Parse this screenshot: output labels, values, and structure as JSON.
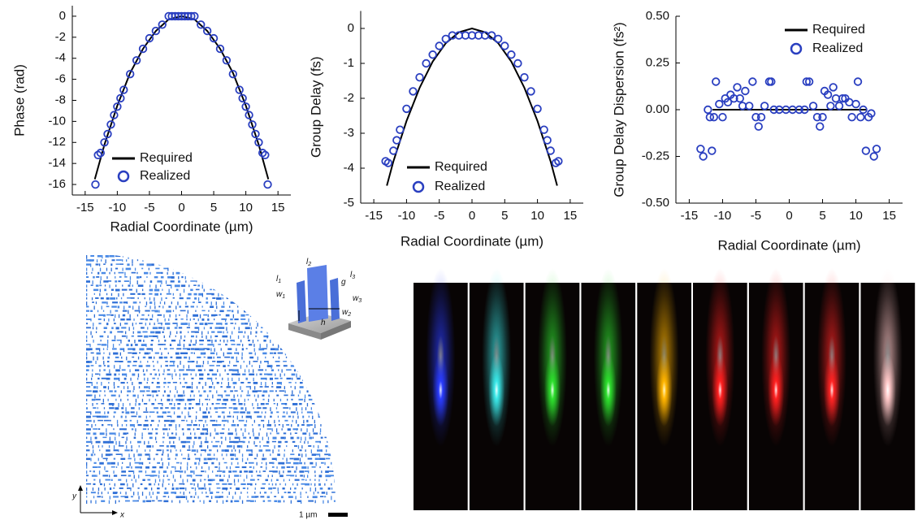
{
  "chart_data": [
    {
      "type": "line",
      "ylabel": "Phase (rad)",
      "xlabel": "Radial Coordinate (µm)",
      "xlim": [
        -17,
        17
      ],
      "xticks": [
        -15,
        -10,
        -5,
        0,
        5,
        10,
        15
      ],
      "ylim": [
        -17,
        1
      ],
      "yticks": [
        0,
        -2,
        -4,
        -6,
        -8,
        -10,
        -12,
        -14,
        -16
      ],
      "series": [
        {
          "name": "Required",
          "style": "line",
          "color": "#000000",
          "x": [
            -13.5,
            -12,
            -10,
            -8,
            -6,
            -4,
            -2,
            0,
            2,
            4,
            6,
            8,
            10,
            12,
            13.5
          ],
          "values": [
            -15.5,
            -12.2,
            -8.5,
            -5.4,
            -3.1,
            -1.4,
            -0.3,
            0,
            -0.3,
            -1.4,
            -3.1,
            -5.4,
            -8.5,
            -12.2,
            -15.5
          ]
        },
        {
          "name": "Realized",
          "style": "scatter",
          "color": "#2a3fc0",
          "x": [
            -13.4,
            -13,
            -12.6,
            -12,
            -11.5,
            -11,
            -10.5,
            -10,
            -9.5,
            -9,
            -8,
            -7,
            -6,
            -5,
            -4,
            -3,
            -2,
            -1.5,
            -1,
            -0.5,
            0,
            0.5,
            1,
            1.5,
            2,
            3,
            4,
            5,
            6,
            7,
            8,
            9,
            9.5,
            10,
            10.5,
            11,
            11.5,
            12,
            12.6,
            13,
            13.4
          ],
          "values": [
            -16,
            -13.2,
            -13,
            -12,
            -11.2,
            -10.3,
            -9.4,
            -8.6,
            -7.8,
            -7,
            -5.5,
            -4.2,
            -3.1,
            -2.1,
            -1.4,
            -0.8,
            0,
            0,
            0,
            0,
            0,
            0,
            0,
            0,
            0,
            -0.8,
            -1.4,
            -2.1,
            -3.1,
            -4.2,
            -5.5,
            -7,
            -7.8,
            -8.6,
            -9.4,
            -10.3,
            -11.2,
            -12,
            -13,
            -13.2,
            -16
          ]
        }
      ]
    },
    {
      "type": "line",
      "ylabel": "Group Delay (fs)",
      "xlabel": "Radial Coordinate (µm)",
      "xlim": [
        -17,
        17
      ],
      "xticks": [
        -15,
        -10,
        -5,
        0,
        5,
        10,
        15
      ],
      "ylim": [
        -5,
        0.5
      ],
      "yticks": [
        0,
        -1,
        -2,
        -3,
        -4,
        -5
      ],
      "series": [
        {
          "name": "Required",
          "style": "line",
          "color": "#000000",
          "x": [
            -13,
            -12,
            -10,
            -8,
            -6,
            -4,
            -2,
            0,
            2,
            4,
            6,
            8,
            10,
            12,
            13
          ],
          "values": [
            -4.5,
            -3.8,
            -2.65,
            -1.7,
            -0.95,
            -0.42,
            -0.11,
            0,
            -0.11,
            -0.42,
            -0.95,
            -1.7,
            -2.65,
            -3.8,
            -4.5
          ]
        },
        {
          "name": "Realized",
          "style": "scatter",
          "color": "#2a3fc0",
          "x": [
            -13.2,
            -12.8,
            -12,
            -11.5,
            -11,
            -10,
            -9,
            -8,
            -7,
            -6,
            -5,
            -4,
            -3,
            -2,
            -1,
            0,
            1,
            2,
            3,
            4,
            5,
            6,
            7,
            8,
            9,
            10,
            11,
            11.5,
            12,
            12.8,
            13.2
          ],
          "values": [
            -3.8,
            -3.85,
            -3.5,
            -3.2,
            -2.9,
            -2.3,
            -1.8,
            -1.4,
            -1,
            -0.75,
            -0.5,
            -0.3,
            -0.2,
            -0.2,
            -0.2,
            -0.2,
            -0.2,
            -0.2,
            -0.2,
            -0.3,
            -0.5,
            -0.75,
            -1,
            -1.4,
            -1.8,
            -2.3,
            -2.9,
            -3.2,
            -3.5,
            -3.85,
            -3.8
          ]
        }
      ]
    },
    {
      "type": "line",
      "ylabel": "Group Delay Dispersion (fs²)",
      "xlabel": "Radial Coordinate (µm)",
      "xlim": [
        -17,
        17
      ],
      "xticks": [
        -15,
        -10,
        -5,
        0,
        5,
        10,
        15
      ],
      "ylim": [
        -0.5,
        0.5
      ],
      "yticks": [
        {
          "value": 0.5,
          "label": "0.50"
        },
        {
          "value": 0.25,
          "label": "0.25"
        },
        {
          "value": 0,
          "label": "0.00"
        },
        {
          "value": -0.25,
          "label": "-0.25"
        },
        {
          "value": -0.5,
          "label": "-0.50"
        }
      ],
      "series": [
        {
          "name": "Required",
          "style": "line",
          "color": "#000000",
          "x": [
            -11.5,
            11.5
          ],
          "values": [
            0,
            0
          ]
        },
        {
          "name": "Realized",
          "style": "scatter",
          "color": "#2a3fc0",
          "x": [
            -13.3,
            -12.9,
            -12.2,
            -11.9,
            -11.6,
            -11.3,
            -11,
            -10.5,
            -10,
            -9.6,
            -9.2,
            -8.8,
            -8.3,
            -7.8,
            -7.4,
            -7,
            -6.6,
            -6,
            -5.5,
            -5,
            -4.6,
            -4.2,
            -3.7,
            -3,
            -2.7,
            -2.3,
            -1.5,
            -0.5,
            0.5,
            1.5,
            2.3,
            2.6,
            3,
            3.6,
            4.2,
            4.6,
            5,
            5.3,
            5.8,
            6.2,
            6.6,
            7,
            7.5,
            8,
            8.4,
            9,
            9.4,
            10,
            10.3,
            10.7,
            11.1,
            11.5,
            11.9,
            12.3,
            12.7,
            13.1
          ],
          "values": [
            -0.21,
            -0.25,
            0,
            -0.04,
            -0.22,
            -0.04,
            0.15,
            0.03,
            -0.04,
            0.06,
            0.04,
            0.08,
            0.06,
            0.12,
            0.06,
            0.02,
            0.1,
            0.02,
            0.15,
            -0.04,
            -0.09,
            -0.04,
            0.02,
            0.15,
            0.15,
            0,
            0,
            0,
            0,
            0,
            0,
            0.15,
            0.15,
            0.02,
            -0.04,
            -0.09,
            -0.04,
            0.1,
            0.08,
            0.02,
            0.12,
            0.06,
            0.02,
            0.06,
            0.06,
            0.04,
            -0.04,
            0.03,
            0.15,
            -0.04,
            0,
            -0.22,
            -0.04,
            -0.02,
            -0.25,
            -0.21
          ]
        }
      ]
    }
  ],
  "inset_labels": [
    {
      "main": "l",
      "sub": "1"
    },
    {
      "main": "w",
      "sub": "1"
    },
    {
      "main": "l",
      "sub": "2"
    },
    {
      "main": "g",
      "sub": ""
    },
    {
      "main": "l",
      "sub": "3"
    },
    {
      "main": "w",
      "sub": "3"
    },
    {
      "main": "h",
      "sub": ""
    },
    {
      "main": "w",
      "sub": "2"
    }
  ],
  "axes_labels": {
    "y": "y",
    "x": "x"
  },
  "scale_bar": "1 µm"
}
